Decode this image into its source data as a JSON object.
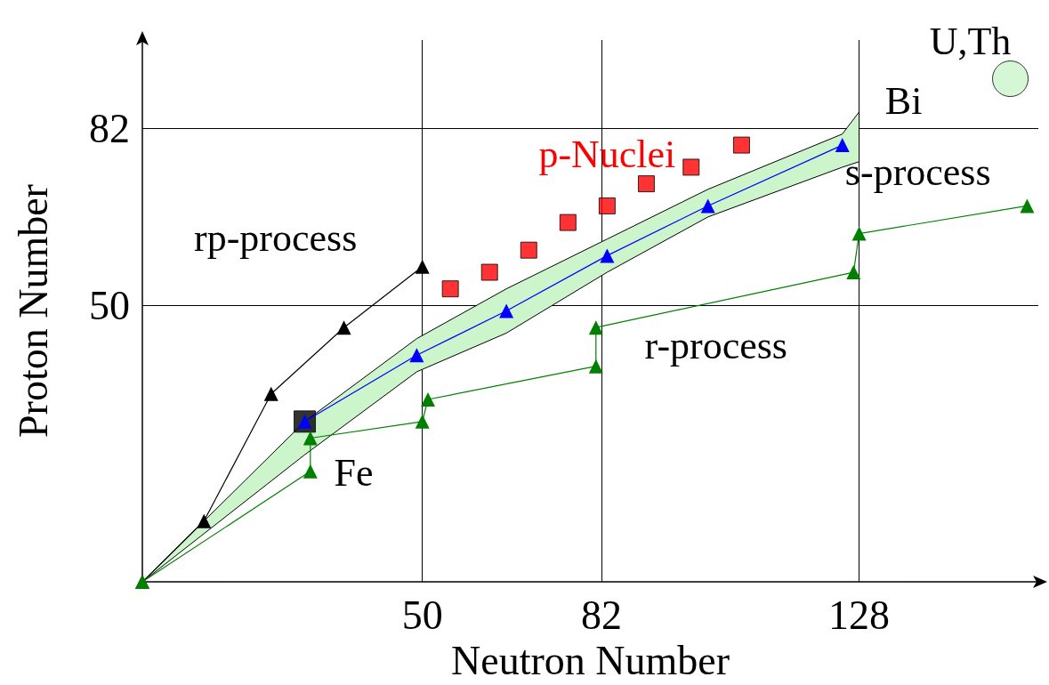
{
  "chart_data": {
    "type": "line",
    "xlabel": "Neutron Number",
    "ylabel": "Proton Number",
    "xlim": [
      0,
      160
    ],
    "ylim": [
      0,
      98
    ],
    "xticks": [
      50,
      82,
      128
    ],
    "yticks": [
      50,
      82
    ],
    "grid": true,
    "series": [
      {
        "color": "#0000ff",
        "marker": "triangle",
        "x": [
          0,
          29,
          49,
          65,
          83,
          101,
          125,
          128
        ],
        "values": [
          null,
          29,
          41,
          49,
          59,
          68,
          79,
          null
        ],
        "lower": [
          0,
          23,
          38,
          45,
          56,
          66,
          75,
          76
        ],
        "upper": [
          0,
          29,
          44,
          53,
          62,
          71,
          81,
          85
        ]
      },
      {
        "color": "#000000",
        "marker": "triangle",
        "x": [
          0,
          11,
          23,
          36,
          50
        ],
        "values": [
          0,
          11,
          34,
          46,
          57
        ]
      },
      {
        "color": "#008000",
        "marker": "triangle",
        "x": [
          0,
          30,
          30,
          50,
          51,
          81,
          81,
          127,
          128,
          158
        ],
        "values": [
          0,
          20,
          26,
          29,
          33,
          39,
          46,
          56,
          63,
          68
        ]
      },
      {
        "type": "scatter",
        "name": "p-Nuclei",
        "color": "#ff0000",
        "marker": "square",
        "x": [
          55,
          62,
          69,
          76,
          83,
          90,
          98,
          107
        ],
        "values": [
          53,
          56,
          60,
          65,
          68,
          72,
          75,
          79
        ]
      },
      {
        "type": "scatter",
        "color": "#000000",
        "marker": "square",
        "x": [
          29
        ],
        "values": [
          29
        ]
      },
      {
        "type": "scatter",
        "color": "#ccf5cc",
        "marker": "circle",
        "x": [
          155
        ],
        "values": [
          91
        ]
      }
    ],
    "annotations": [
      {
        "text": "rp-process",
        "x": 50,
        "y": 57
      },
      {
        "text": "s-process",
        "x": 125,
        "y": 79
      },
      {
        "text": "r-process",
        "x": 81,
        "y": 46
      },
      {
        "text": "Fe",
        "x": 29,
        "y": 29
      },
      {
        "text": "Bi",
        "x": 128,
        "y": 85
      },
      {
        "text": "U,Th",
        "x": 155,
        "y": 91
      }
    ]
  }
}
